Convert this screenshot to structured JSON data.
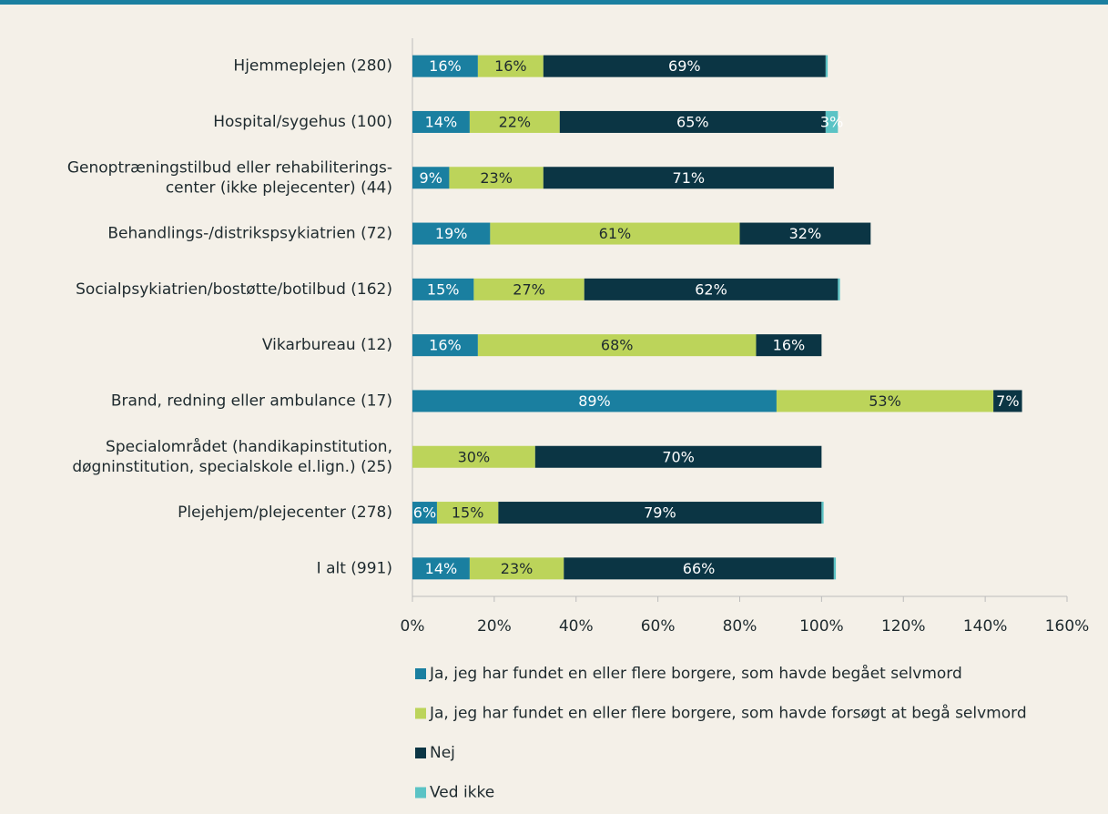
{
  "chart_data": {
    "type": "stacked-bar-horizontal",
    "categories": [
      "Hjemmeplejen (280)",
      "Hospital/sygehus (100)",
      "Genoptræningstilbud eller rehabiliterings-\ncenter (ikke plejecenter) (44)",
      "Behandlings-/distrikspsykiatrien (72)",
      "Socialpsykiatrien/bostøtte/botilbud (162)",
      "Vikarbureau (12)",
      "Brand, redning eller ambulance (17)",
      "Specialområdet (handikapinstitution,\ndøgninstitution, specialskole el.lign.) (25)",
      "Plejehjem/plejecenter (278)",
      "I alt (991)"
    ],
    "series": [
      {
        "name": "Ja, jeg har fundet en eller flere borgere, som havde begået selvmord",
        "color": "#1a7fa0",
        "label_color": "#ffffff",
        "values": [
          16,
          14,
          9,
          19,
          15,
          16,
          89,
          0,
          6,
          14
        ],
        "value_labels": [
          "16%",
          "14%",
          "9%",
          "19%",
          "15%",
          "16%",
          "89%",
          null,
          "6%",
          "14%"
        ]
      },
      {
        "name": "Ja, jeg har fundet en eller flere borgere, som havde forsøgt at begå selvmord",
        "color": "#bcd45a",
        "label_color": "#1e2a2e",
        "values": [
          16,
          22,
          23,
          61,
          27,
          68,
          53,
          30,
          15,
          23
        ],
        "value_labels": [
          "16%",
          "22%",
          "23%",
          "61%",
          "27%",
          "68%",
          "53%",
          "30%",
          "15%",
          "23%"
        ]
      },
      {
        "name": "Nej",
        "color": "#0b3544",
        "label_color": "#ffffff",
        "values": [
          69,
          65,
          71,
          32,
          62,
          16,
          7,
          70,
          79,
          66
        ],
        "value_labels": [
          "69%",
          "65%",
          "71%",
          "32%",
          "62%",
          "16%",
          "7%",
          "70%",
          "79%",
          "66%"
        ]
      },
      {
        "name": "Ved ikke",
        "color": "#5bc3c5",
        "label_color": "#ffffff",
        "values": [
          0.5,
          3,
          0,
          0,
          0.5,
          0,
          0,
          0,
          0.5,
          0.5
        ],
        "value_labels": [
          null,
          "3%",
          null,
          null,
          null,
          null,
          null,
          null,
          null,
          null
        ]
      }
    ],
    "xlim": [
      0,
      160
    ],
    "xticks": [
      {
        "value": 0,
        "label": "0%"
      },
      {
        "value": 20,
        "label": "20%"
      },
      {
        "value": 40,
        "label": "40%"
      },
      {
        "value": 60,
        "label": "60%"
      },
      {
        "value": 80,
        "label": "80%"
      },
      {
        "value": 100,
        "label": "100%"
      },
      {
        "value": 120,
        "label": "120%"
      },
      {
        "value": 140,
        "label": "140%"
      },
      {
        "value": 160,
        "label": "160%"
      }
    ],
    "legend": "bottom"
  }
}
